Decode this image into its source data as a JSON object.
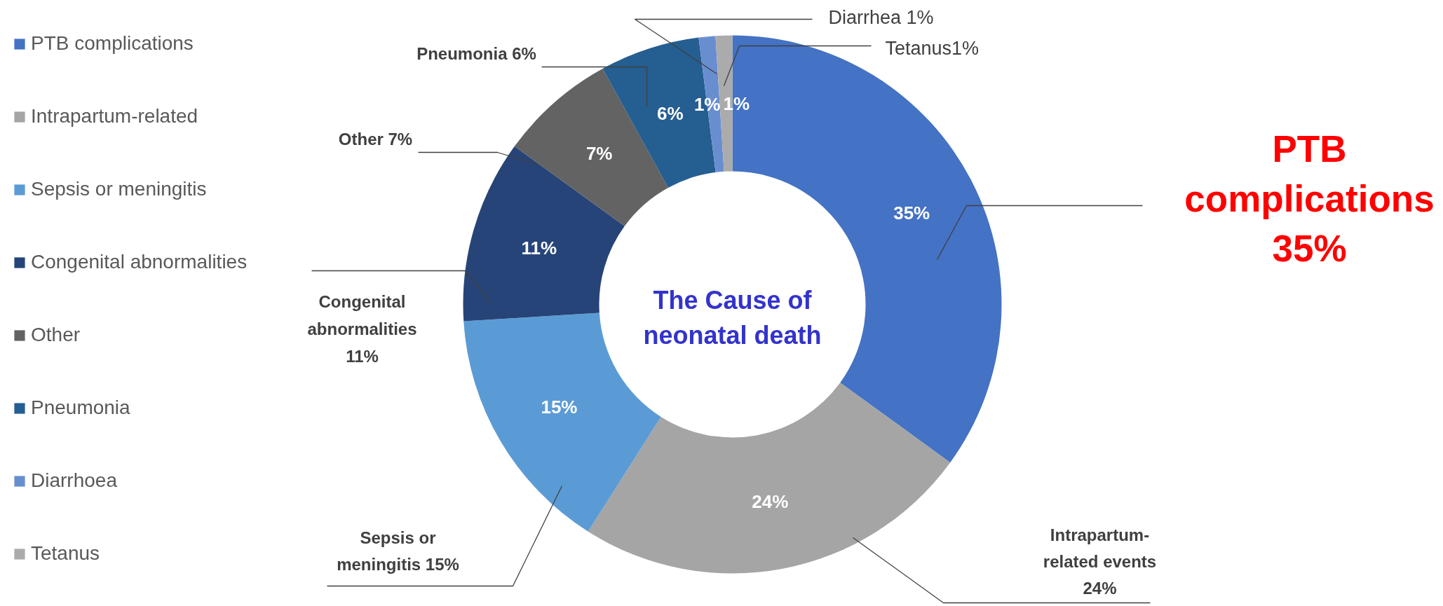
{
  "chart_data": {
    "type": "donut",
    "title": "The Cause of neonatal death",
    "categories": [
      "PTB complications",
      "Intrapartum-related",
      "Sepsis or meningitis",
      "Congenital abnormalities",
      "Other",
      "Pneumonia",
      "Diarrhoea",
      "Tetanus"
    ],
    "values": [
      35,
      24,
      15,
      11,
      7,
      6,
      1,
      1
    ],
    "colors": [
      "#4472c4",
      "#a5a5a5",
      "#5b9bd5",
      "#264478",
      "#636363",
      "#255e91",
      "#698ed0",
      "#ababab"
    ],
    "value_labels": [
      "35%",
      "24%",
      "15%",
      "11%",
      "7%",
      "6%",
      "1%",
      "1%"
    ],
    "annotations": [
      "PTB complications 35%",
      "Intrapartum-related events 24%",
      "Sepsis or meningitis 15%",
      "Congenital abnormalities 11%",
      "Other 7%",
      "Pneumonia 6%",
      "Diarrhea 1%",
      "Tetanus1%"
    ],
    "legend": "left"
  }
}
